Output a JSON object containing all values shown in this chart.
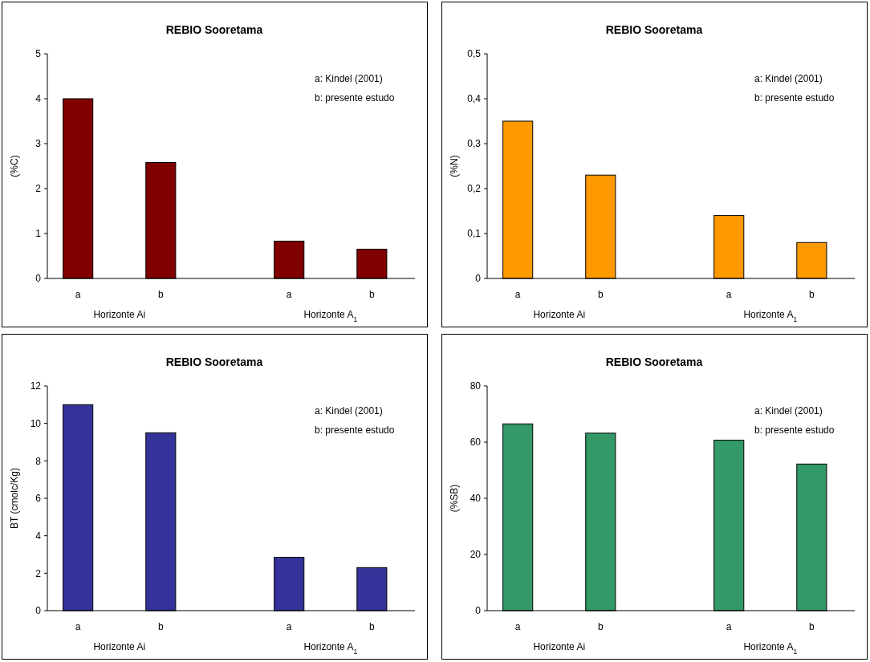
{
  "chart_data": [
    {
      "type": "bar",
      "title": "REBIO Sooretama",
      "ylabel": "(%C)",
      "categories": [
        "a",
        "b",
        "a",
        "b"
      ],
      "values": [
        4.0,
        2.58,
        0.83,
        0.65
      ],
      "color": "#800000",
      "ylim": [
        0,
        5
      ],
      "yticks": [
        0,
        1,
        2,
        3,
        4,
        5
      ],
      "annotations": [
        "Horizonte Ai",
        "Horizonte A$_{1}$",
        "a: Kindel (2001)",
        "b: presente estudo"
      ]
    },
    {
      "type": "bar",
      "title": "REBIO Sooretama",
      "ylabel": "(%N)",
      "categories": [
        "a",
        "b",
        "a",
        "b"
      ],
      "values": [
        0.35,
        0.23,
        0.14,
        0.08
      ],
      "color": "#ff9900",
      "ylim": [
        0,
        0.5
      ],
      "yticks": [
        0,
        {
          "value": 0.1,
          "label": "0,1"
        },
        {
          "value": 0.2,
          "label": "0,2"
        },
        {
          "value": 0.3,
          "label": "0,3"
        },
        {
          "value": 0.4,
          "label": "0,4"
        },
        {
          "value": 0.5,
          "label": "0,5"
        }
      ],
      "annotations": [
        "Horizonte Ai",
        "Horizonte A$_{1}$",
        "a: Kindel (2001)",
        "b: presente estudo"
      ]
    },
    {
      "type": "bar",
      "title": "REBIO Sooretama",
      "ylabel": "BT (cmolc/Kg)",
      "categories": [
        "a",
        "b",
        "a",
        "b"
      ],
      "values": [
        11.0,
        9.5,
        2.85,
        2.3
      ],
      "color": "#333399",
      "ylim": [
        0,
        12
      ],
      "yticks": [
        0,
        2,
        4,
        6,
        8,
        10,
        12
      ],
      "annotations": [
        "Horizonte Ai",
        "Horizonte A$_{1}$",
        "a: Kindel (2001)",
        "b: presente estudo"
      ]
    },
    {
      "type": "bar",
      "title": "REBIO Sooretama",
      "ylabel": "(%SB)",
      "categories": [
        "a",
        "b",
        "a",
        "b"
      ],
      "values": [
        66.5,
        63.2,
        60.7,
        52.2
      ],
      "color": "#339966",
      "ylim": [
        0,
        80
      ],
      "yticks": [
        0,
        20,
        40,
        60,
        80
      ],
      "annotations": [
        "Horizonte Ai",
        "Horizonte A$_{1}$",
        "a: Kindel (2001)",
        "b: presente estudo"
      ]
    }
  ]
}
